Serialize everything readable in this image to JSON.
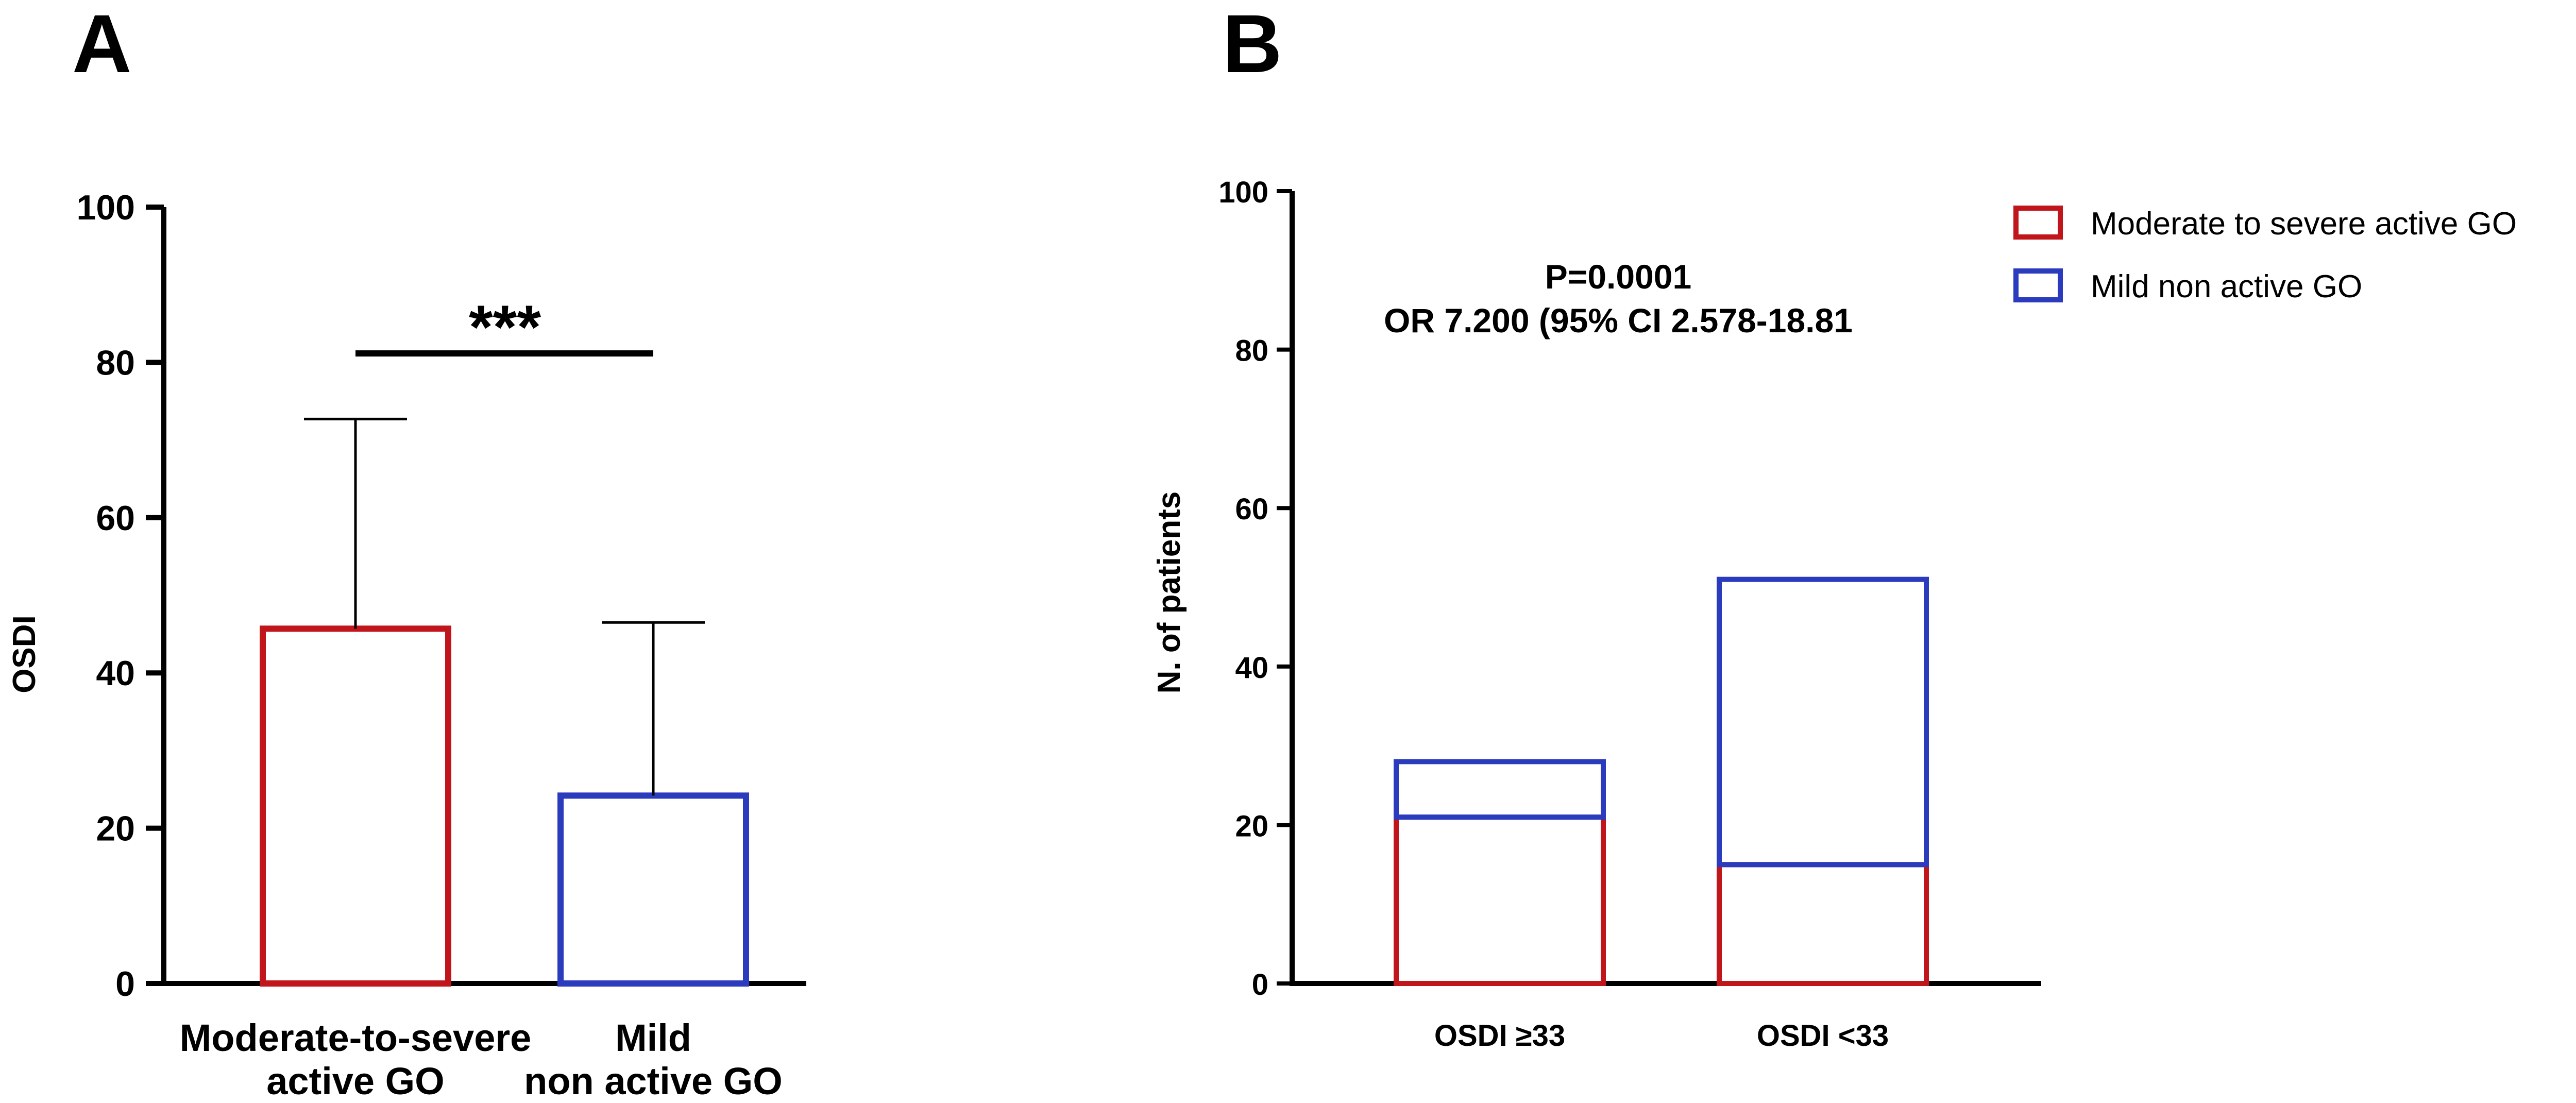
{
  "chart_data": [
    {
      "panel": "A",
      "type": "bar",
      "ylabel": "OSDI",
      "ylim": [
        0,
        100
      ],
      "yticks": [
        "0",
        "20",
        "40",
        "60",
        "80",
        "100"
      ],
      "categories": [
        {
          "line1": "Moderate-to-severe",
          "line2": "active GO"
        },
        {
          "line1": "Mild",
          "line2": "non active GO"
        }
      ],
      "values": [
        45.7,
        24.2
      ],
      "error_upper": [
        72.7,
        46.5
      ],
      "bar_colors": [
        "#c0161b",
        "#2a3bbd"
      ],
      "significance": "***",
      "grid": false
    },
    {
      "panel": "B",
      "type": "bar",
      "stacked": true,
      "ylabel": "N. of patients",
      "ylim": [
        0,
        100
      ],
      "yticks": [
        "0",
        "20",
        "40",
        "60",
        "80",
        "100"
      ],
      "categories": [
        "OSDI ≥33",
        "OSDI <33"
      ],
      "series": [
        {
          "name": "Moderate to severe active GO",
          "color": "#c0161b",
          "values": [
            21,
            15
          ]
        },
        {
          "name": "Mild non active GO",
          "color": "#2a3bbd",
          "values": [
            7,
            36
          ]
        }
      ],
      "annotations": [
        "P=0.0001",
        "OR 7.200 (95% CI 2.578-18.81"
      ],
      "legend_position": "top-right",
      "grid": false
    }
  ]
}
